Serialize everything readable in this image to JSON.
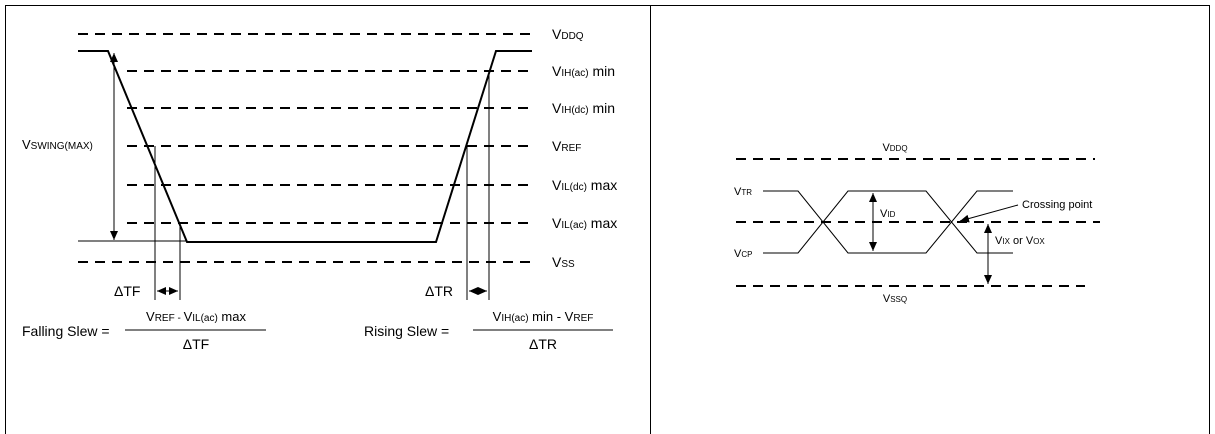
{
  "left_panel": {
    "levels": [
      {
        "key": "vddq",
        "main": "V",
        "sub": "DDQ",
        "suffix": ""
      },
      {
        "key": "vih_ac",
        "main": "V",
        "sub": "IH(ac)",
        "suffix": " min"
      },
      {
        "key": "vih_dc",
        "main": "V",
        "sub": "IH(dc)",
        "suffix": " min"
      },
      {
        "key": "vref",
        "main": "V",
        "sub": "REF",
        "suffix": ""
      },
      {
        "key": "vil_dc",
        "main": "V",
        "sub": "IL(dc)",
        "suffix": " max"
      },
      {
        "key": "vil_ac",
        "main": "V",
        "sub": "IL(ac)",
        "suffix": " max"
      },
      {
        "key": "vss",
        "main": "V",
        "sub": "SS",
        "suffix": ""
      }
    ],
    "vswing": {
      "main": "V",
      "sub": "SWING(MAX)"
    },
    "delta_tf": "ΔTF",
    "delta_tr": "ΔTR",
    "falling_slew": {
      "label": "Falling Slew = ",
      "numerator": [
        {
          "main": "V",
          "sub": "REF"
        },
        {
          "text": " - "
        },
        {
          "main": "V",
          "sub": "IL(ac)"
        },
        {
          "text": " max"
        }
      ],
      "denominator": "ΔTF"
    },
    "rising_slew": {
      "label": "Rising Slew = ",
      "numerator": [
        {
          "main": "V",
          "sub": "IH(ac)"
        },
        {
          "text": " min - "
        },
        {
          "main": "V",
          "sub": "REF"
        }
      ],
      "denominator": "ΔTR"
    }
  },
  "right_panel": {
    "vddq": {
      "main": "V",
      "sub": "DDQ"
    },
    "vssq": {
      "main": "V",
      "sub": "SSQ"
    },
    "vtr": {
      "main": "V",
      "sub": "TR"
    },
    "vcp": {
      "main": "V",
      "sub": "CP"
    },
    "vid": {
      "main": "V",
      "sub": "ID"
    },
    "vix_vox": [
      {
        "main": "V",
        "sub": "IX"
      },
      {
        "text": " or "
      },
      {
        "main": "V",
        "sub": "OX"
      }
    ],
    "crossing_point": "Crossing point"
  },
  "colors": {
    "line": "#000000",
    "background": "#ffffff"
  }
}
